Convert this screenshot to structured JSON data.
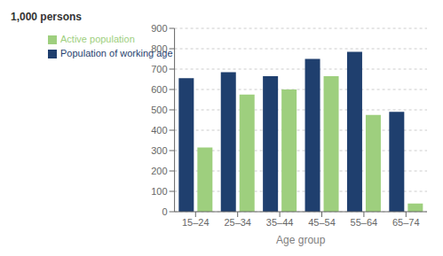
{
  "chart_data": {
    "type": "bar",
    "ylabel": "1,000 persons",
    "xlabel": "Age group",
    "categories": [
      "15–24",
      "25–34",
      "35–44",
      "45–54",
      "55–64",
      "65–74"
    ],
    "series": [
      {
        "name": "Population of working age",
        "color": "#1f3f6e",
        "values": [
          655,
          685,
          665,
          750,
          785,
          490
        ]
      },
      {
        "name": "Active population",
        "color": "#9ecf7e",
        "values": [
          315,
          575,
          600,
          665,
          475,
          40
        ]
      }
    ],
    "ylim": [
      0,
      900
    ],
    "yticks": [
      0,
      100,
      200,
      300,
      400,
      500,
      600,
      700,
      800,
      900
    ],
    "grid": true,
    "legend": "upper left"
  }
}
